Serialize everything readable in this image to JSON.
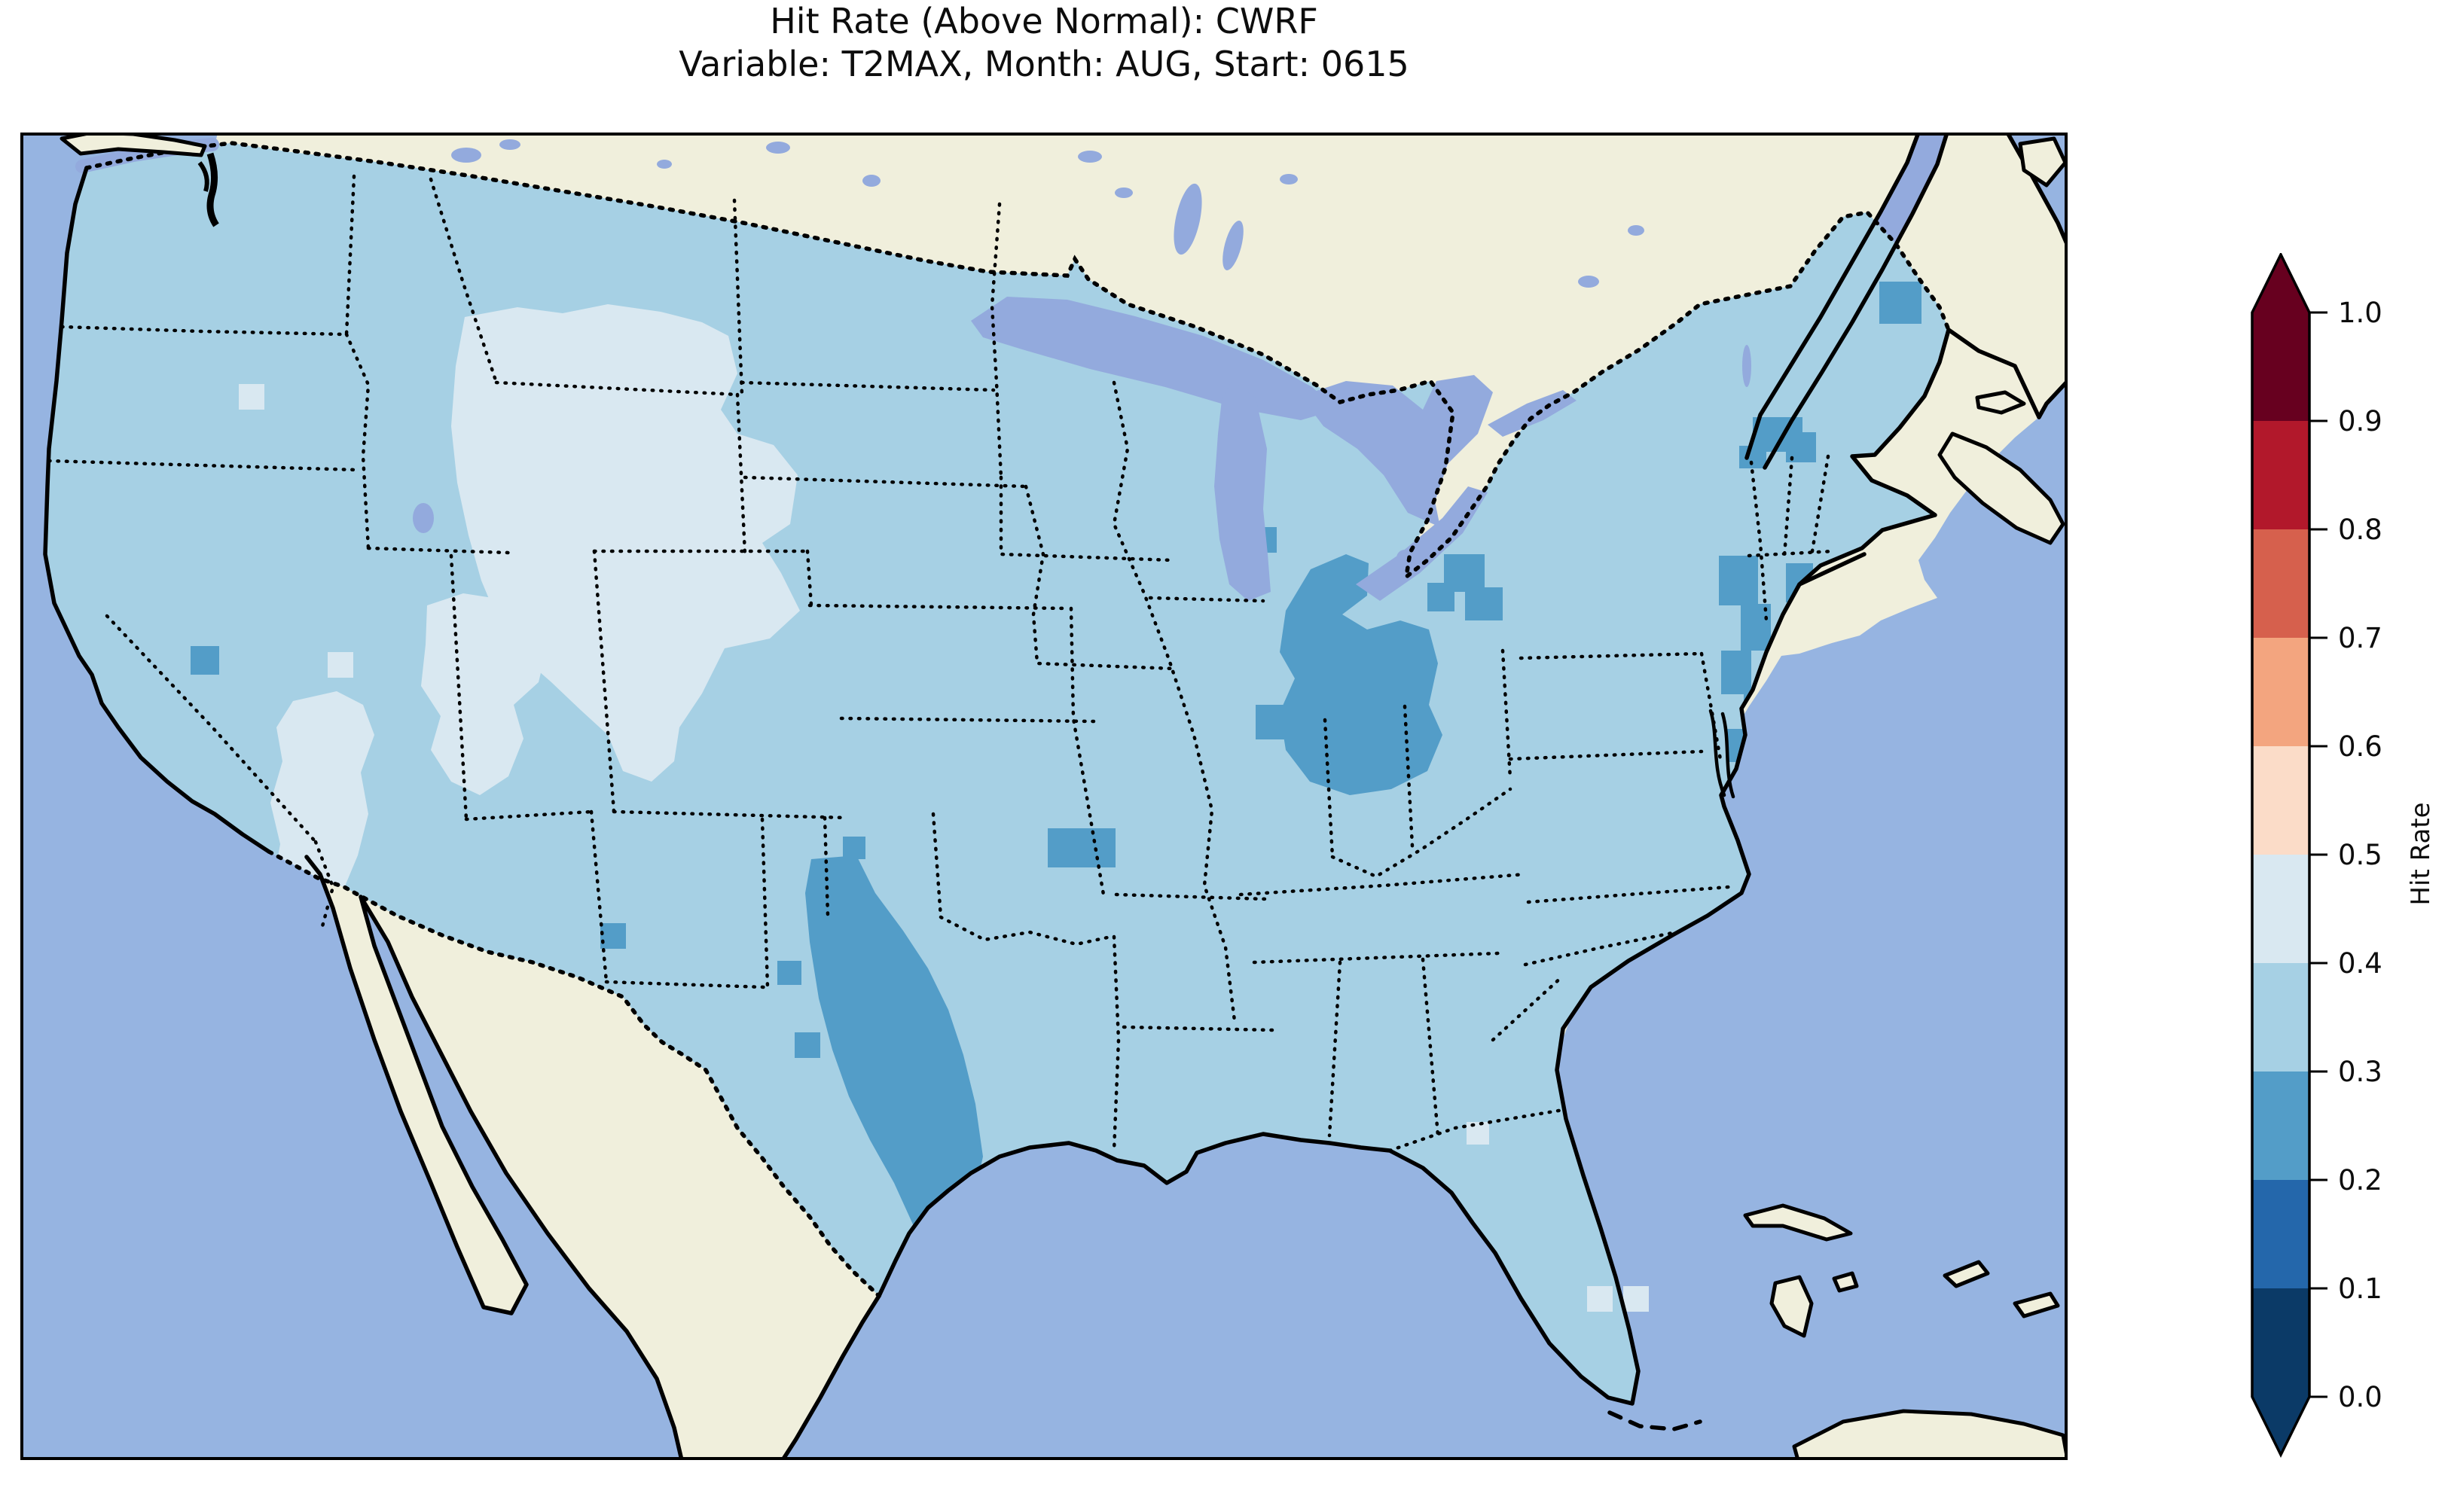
{
  "chart_data": {
    "type": "heatmap",
    "title": "Hit Rate (Above Normal): CWRF",
    "subtitle": "Variable: T2MAX, Month: AUG, Start: 0615",
    "metric": "Hit Rate (Above Normal)",
    "model": "CWRF",
    "variable": "T2MAX",
    "month": "AUG",
    "start": "0615",
    "colorbar": {
      "label": "Hit Rate",
      "orientation": "vertical",
      "extend": "both",
      "tick_labels": [
        "0.0",
        "0.1",
        "0.2",
        "0.3",
        "0.4",
        "0.5",
        "0.6",
        "0.7",
        "0.8",
        "0.9",
        "1.0"
      ],
      "bins": [
        {
          "range": [
            0.0,
            0.1
          ],
          "color": "#0b3a67"
        },
        {
          "range": [
            0.1,
            0.2
          ],
          "color": "#2467ab"
        },
        {
          "range": [
            0.2,
            0.3
          ],
          "color": "#539dc8"
        },
        {
          "range": [
            0.3,
            0.4
          ],
          "color": "#a6d0e4"
        },
        {
          "range": [
            0.4,
            0.5
          ],
          "color": "#d9e8f1"
        },
        {
          "range": [
            0.5,
            0.6
          ],
          "color": "#fbdcc8"
        },
        {
          "range": [
            0.6,
            0.7
          ],
          "color": "#f3a57f"
        },
        {
          "range": [
            0.7,
            0.8
          ],
          "color": "#d6604d"
        },
        {
          "range": [
            0.8,
            0.9
          ],
          "color": "#b2182b"
        },
        {
          "range": [
            0.9,
            1.0
          ],
          "color": "#67001f"
        }
      ]
    },
    "map": {
      "extent": "CONUS with southern Canada, Mexico/Baja California, Gulf of Mexico, Bahamas and Cuba",
      "projection_hint": "Lambert-conformal style regional projection",
      "ocean_color": "#96b4e1",
      "land_color": "#f0efdc",
      "lake_color": "#93aadd",
      "coast_style": "solid black coastlines",
      "border_style": "dotted black state and international borders",
      "grid_note": "hit rate shown as coarse pixel grid over CONUS only"
    },
    "values_by_region": [
      {
        "region": "Most of CONUS (baseline)",
        "hit_rate": "0.3-0.4"
      },
      {
        "region": "Northern Rockies & High Plains (MT, WY, ID, W Dakotas, NE panhandle, CO tongue)",
        "hit_rate": "0.4-0.5"
      },
      {
        "region": "Great Basin & lower Colorado River (NV, UT, W AZ, SE CA)",
        "hit_rate": "0.4-0.5"
      },
      {
        "region": "Central Texas diagonal band from panhandle to Gulf coast",
        "hit_rate": "0.2-0.3"
      },
      {
        "region": "Lower Midwest (S Illinois, Indiana, W Kentucky)",
        "hit_rate": "0.2-0.3"
      },
      {
        "region": "Lake Erie south shore (NE Ohio)",
        "hit_rate": "0.2-0.3"
      },
      {
        "region": "Mid-Atlantic coast (New Jersey, Delmarva, Chesapeake)",
        "hit_rate": "0.2-0.3"
      },
      {
        "region": "New York City / Long Island cell",
        "hit_rate": "0.2-0.3"
      },
      {
        "region": "Northern New England spots (VT / NH)",
        "hit_rate": "0.2-0.3"
      },
      {
        "region": "Eastern Maine cluster",
        "hit_rate": "0.2-0.3"
      },
      {
        "region": "Isolated cells: E California, C New Mexico, SE Oklahoma-Arkansas strip",
        "hit_rate": "0.2-0.3"
      },
      {
        "region": "Offshore cells south of Florida and Mississippi coast cell",
        "hit_rate": "0.4-0.5"
      }
    ]
  }
}
